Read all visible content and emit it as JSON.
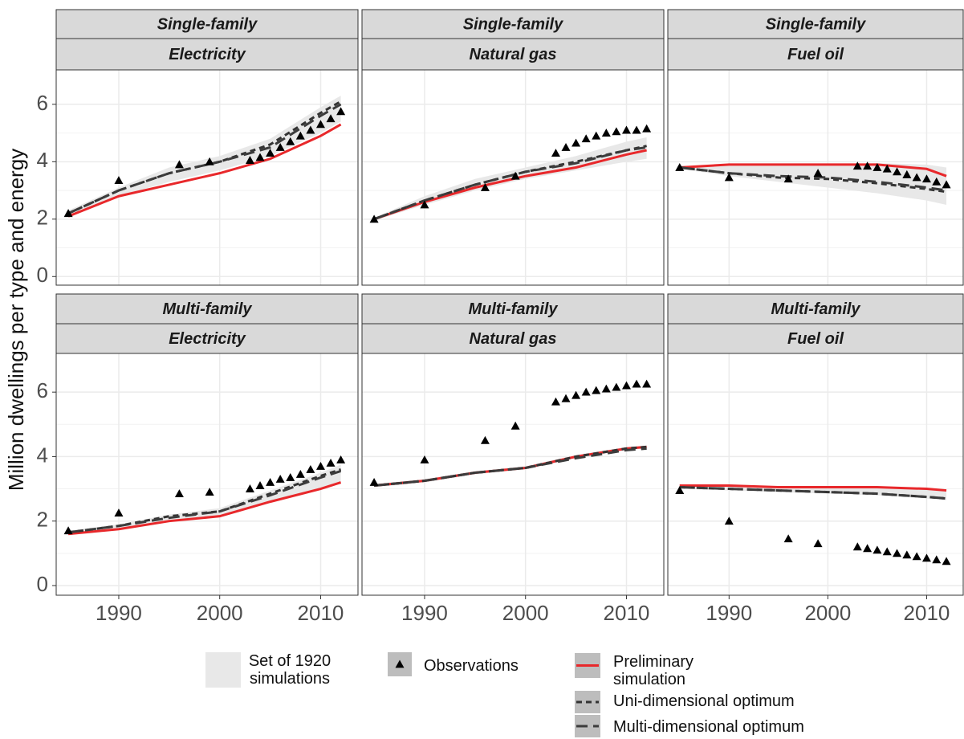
{
  "chart_data": {
    "type": "line",
    "ylabel": "Million dwellings per type and energy",
    "xlim": [
      1983.8,
      2013.7
    ],
    "xticks": [
      1990,
      2000,
      2010
    ],
    "ylim": [
      -0.3,
      7.2
    ],
    "yticks": [
      0,
      2,
      4,
      6
    ],
    "grid": true,
    "x": [
      1985,
      1990,
      1995,
      2000,
      2005,
      2010,
      2012
    ],
    "series": [
      {
        "name": "Set of 1920 simulations",
        "color": "#e8e8e8"
      },
      {
        "name": "Observations",
        "color": "#000000"
      },
      {
        "name": "Preliminary simulation",
        "color": "#e8282b"
      },
      {
        "name": "Uni-dimensional optimum",
        "color": "#333333",
        "dash": "7,5"
      },
      {
        "name": "Multi-dimensional optimum",
        "color": "#3c3c3c",
        "dash": "14,7"
      }
    ],
    "panels": [
      {
        "row": "Single-family",
        "col": "Electricity",
        "series": [
          {
            "lower": [
              2.1,
              2.8,
              3.3,
              3.7,
              4.2,
              5.0,
              5.4
            ],
            "upper": [
              2.3,
              3.1,
              3.8,
              4.2,
              4.8,
              5.9,
              6.3
            ]
          },
          {
            "x": [
              1985,
              1990,
              1996,
              1999,
              2003,
              2004,
              2005,
              2006,
              2007,
              2008,
              2009,
              2010,
              2011,
              2012
            ],
            "values": [
              2.2,
              3.35,
              3.9,
              4.0,
              4.05,
              4.15,
              4.3,
              4.5,
              4.7,
              4.9,
              5.1,
              5.3,
              5.5,
              5.75
            ]
          },
          {
            "values": [
              2.1,
              2.8,
              3.2,
              3.6,
              4.1,
              4.9,
              5.3
            ]
          },
          {
            "values": [
              2.2,
              3.0,
              3.6,
              4.0,
              4.6,
              5.7,
              6.1
            ]
          },
          {
            "values": [
              2.2,
              3.0,
              3.6,
              4.0,
              4.5,
              5.6,
              6.0
            ]
          }
        ]
      },
      {
        "row": "Single-family",
        "col": "Natural gas",
        "series": [
          {
            "lower": [
              1.95,
              2.5,
              3.0,
              3.4,
              3.7,
              4.0,
              4.1
            ],
            "upper": [
              2.05,
              2.8,
              3.4,
              3.8,
              4.2,
              4.7,
              4.85
            ]
          },
          {
            "x": [
              1985,
              1990,
              1996,
              1999,
              2003,
              2004,
              2005,
              2006,
              2007,
              2008,
              2009,
              2010,
              2011,
              2012
            ],
            "values": [
              2.0,
              2.5,
              3.1,
              3.5,
              4.3,
              4.5,
              4.65,
              4.8,
              4.9,
              5.0,
              5.05,
              5.1,
              5.1,
              5.15
            ]
          },
          {
            "values": [
              2.0,
              2.6,
              3.1,
              3.5,
              3.8,
              4.25,
              4.4
            ]
          },
          {
            "values": [
              2.0,
              2.65,
              3.2,
              3.65,
              4.0,
              4.4,
              4.55
            ]
          },
          {
            "values": [
              2.0,
              2.65,
              3.2,
              3.65,
              3.95,
              4.4,
              4.5
            ]
          }
        ]
      },
      {
        "row": "Single-family",
        "col": "Fuel oil",
        "series": [
          {
            "lower": [
              3.75,
              3.5,
              3.3,
              3.1,
              2.9,
              2.65,
              2.5
            ],
            "upper": [
              3.85,
              3.9,
              3.9,
              3.9,
              3.95,
              3.9,
              3.8
            ]
          },
          {
            "x": [
              1985,
              1990,
              1996,
              1999,
              2003,
              2004,
              2005,
              2006,
              2007,
              2008,
              2009,
              2010,
              2011,
              2012
            ],
            "values": [
              3.8,
              3.45,
              3.4,
              3.6,
              3.85,
              3.85,
              3.8,
              3.75,
              3.65,
              3.55,
              3.45,
              3.4,
              3.3,
              3.2
            ]
          },
          {
            "values": [
              3.8,
              3.9,
              3.9,
              3.9,
              3.9,
              3.75,
              3.5
            ]
          },
          {
            "values": [
              3.8,
              3.6,
              3.45,
              3.4,
              3.25,
              3.05,
              2.95
            ]
          },
          {
            "values": [
              3.8,
              3.6,
              3.5,
              3.45,
              3.3,
              3.1,
              3.0
            ]
          }
        ]
      },
      {
        "row": "Multi-family",
        "col": "Electricity",
        "series": [
          {
            "lower": [
              1.6,
              1.75,
              2.0,
              2.15,
              2.6,
              3.0,
              3.2
            ],
            "upper": [
              1.7,
              1.9,
              2.2,
              2.4,
              2.95,
              3.5,
              3.75
            ]
          },
          {
            "x": [
              1985,
              1990,
              1996,
              1999,
              2003,
              2004,
              2005,
              2006,
              2007,
              2008,
              2009,
              2010,
              2011,
              2012
            ],
            "values": [
              1.7,
              2.25,
              2.85,
              2.9,
              3.0,
              3.1,
              3.2,
              3.3,
              3.35,
              3.45,
              3.6,
              3.7,
              3.8,
              3.9
            ]
          },
          {
            "values": [
              1.6,
              1.75,
              2.0,
              2.15,
              2.6,
              3.0,
              3.2
            ]
          },
          {
            "values": [
              1.65,
              1.85,
              2.15,
              2.3,
              2.85,
              3.4,
              3.6
            ]
          },
          {
            "values": [
              1.65,
              1.85,
              2.1,
              2.3,
              2.8,
              3.35,
              3.55
            ]
          }
        ]
      },
      {
        "row": "Multi-family",
        "col": "Natural gas",
        "series": [
          {
            "lower": [
              3.05,
              3.2,
              3.45,
              3.6,
              3.95,
              4.2,
              4.25
            ],
            "upper": [
              3.15,
              3.3,
              3.55,
              3.7,
              4.05,
              4.3,
              4.35
            ]
          },
          {
            "x": [
              1985,
              1990,
              1996,
              1999,
              2003,
              2004,
              2005,
              2006,
              2007,
              2008,
              2009,
              2010,
              2011,
              2012
            ],
            "values": [
              3.2,
              3.9,
              4.5,
              4.95,
              5.7,
              5.8,
              5.9,
              6.0,
              6.05,
              6.1,
              6.15,
              6.2,
              6.25,
              6.25
            ]
          },
          {
            "values": [
              3.1,
              3.25,
              3.5,
              3.65,
              4.0,
              4.25,
              4.3
            ]
          },
          {
            "values": [
              3.1,
              3.25,
              3.5,
              3.65,
              4.0,
              4.25,
              4.3
            ]
          },
          {
            "values": [
              3.1,
              3.25,
              3.5,
              3.65,
              3.95,
              4.2,
              4.25
            ]
          }
        ]
      },
      {
        "row": "Multi-family",
        "col": "Fuel oil",
        "series": [
          {
            "lower": [
              3.0,
              2.95,
              2.9,
              2.85,
              2.8,
              2.7,
              2.65
            ],
            "upper": [
              3.1,
              3.1,
              3.05,
              3.05,
              3.05,
              3.0,
              2.95
            ]
          },
          {
            "x": [
              1985,
              1990,
              1996,
              1999,
              2003,
              2004,
              2005,
              2006,
              2007,
              2008,
              2009,
              2010,
              2011,
              2012
            ],
            "values": [
              2.95,
              2.0,
              1.45,
              1.3,
              1.2,
              1.15,
              1.1,
              1.05,
              1.0,
              0.95,
              0.9,
              0.85,
              0.8,
              0.75
            ]
          },
          {
            "values": [
              3.1,
              3.1,
              3.05,
              3.05,
              3.05,
              3.0,
              2.95
            ]
          },
          {
            "values": [
              3.05,
              3.0,
              2.95,
              2.9,
              2.85,
              2.75,
              2.7
            ]
          },
          {
            "values": [
              3.05,
              3.0,
              2.95,
              2.9,
              2.85,
              2.75,
              2.7
            ]
          }
        ]
      }
    ]
  }
}
